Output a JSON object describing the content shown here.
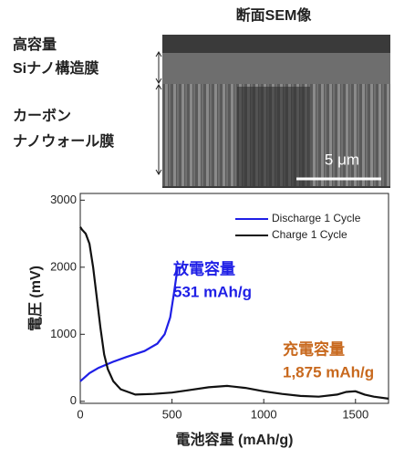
{
  "figure": {
    "sem_title": "断面SEM像",
    "sem_labels": [
      "高容量",
      "Siナノ構造膜",
      "カーボン",
      "ナノウォール膜"
    ],
    "scale_bar": "5 μm"
  },
  "chart_data": {
    "type": "line",
    "x_label": "電池容量 (mAh/g)",
    "y_label": "電圧 (mV)",
    "xlim": [
      0,
      1680
    ],
    "ylim": [
      -30,
      3100
    ],
    "xticks": [
      0,
      500,
      1000,
      1500
    ],
    "yticks": [
      0,
      1000,
      2000,
      3000
    ],
    "series": [
      {
        "name": "Discharge 1 Cycle",
        "color": "#1f1fe6",
        "x": [
          0,
          50,
          100,
          180,
          250,
          350,
          420,
          460,
          490,
          510,
          531
        ],
        "values": [
          300,
          420,
          500,
          590,
          660,
          750,
          860,
          1000,
          1250,
          1600,
          2000
        ]
      },
      {
        "name": "Charge 1 Cycle",
        "color": "#111111",
        "x": [
          0,
          10,
          30,
          50,
          70,
          90,
          110,
          130,
          150,
          180,
          220,
          300,
          400,
          500,
          600,
          700,
          800,
          900,
          1000,
          1100,
          1200,
          1300,
          1400,
          1450,
          1500,
          1550,
          1600,
          1680
        ],
        "values": [
          2600,
          2560,
          2500,
          2350,
          2000,
          1550,
          1100,
          700,
          480,
          300,
          180,
          100,
          110,
          130,
          170,
          210,
          230,
          200,
          150,
          110,
          80,
          70,
          100,
          140,
          150,
          100,
          70,
          40
        ]
      }
    ],
    "annotations": [
      {
        "text": "放電容量",
        "color": "#1f1fe6"
      },
      {
        "text": "531 mAh/g",
        "color": "#1f1fe6"
      },
      {
        "text": "充電容量",
        "color": "#c8691e"
      },
      {
        "text": "1,875 mAh/g",
        "color": "#c8691e"
      }
    ],
    "legend": "upper right"
  }
}
